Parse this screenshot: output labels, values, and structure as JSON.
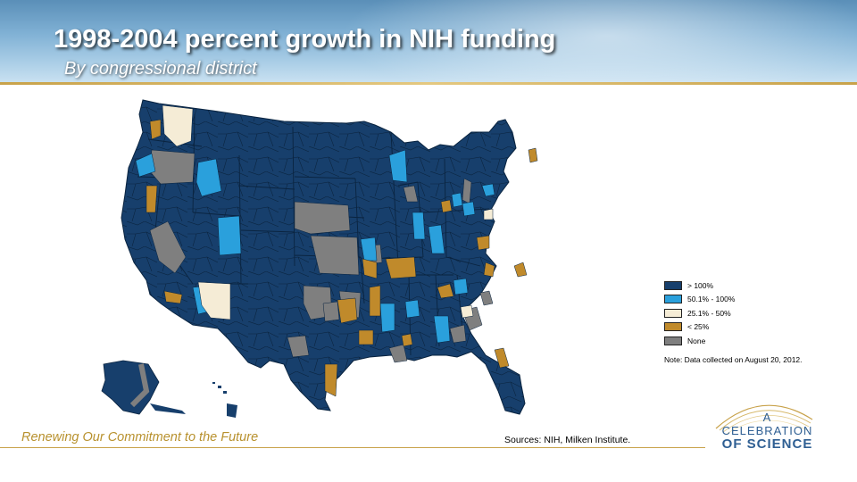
{
  "header": {
    "title": "1998-2004 percent growth in NIH funding",
    "subtitle": "By congressional district"
  },
  "legend": {
    "items": [
      {
        "label": "> 100%",
        "color": "#173f6c"
      },
      {
        "label": "50.1% - 100%",
        "color": "#2aa0dc"
      },
      {
        "label": "25.1% - 50%",
        "color": "#f5ecd6"
      },
      {
        "label": "< 25%",
        "color": "#c08a2b"
      },
      {
        "label": "None",
        "color": "#7f7f7f"
      }
    ],
    "note": "Note: Data collected on August 20, 2012."
  },
  "footer": {
    "tagline": "Renewing Our Commitment to the Future",
    "sources": "Sources: NIH, Milken Institute."
  },
  "logo": {
    "line1": "A",
    "line2": "CELEBRATION",
    "line3": "OF SCIENCE"
  }
}
